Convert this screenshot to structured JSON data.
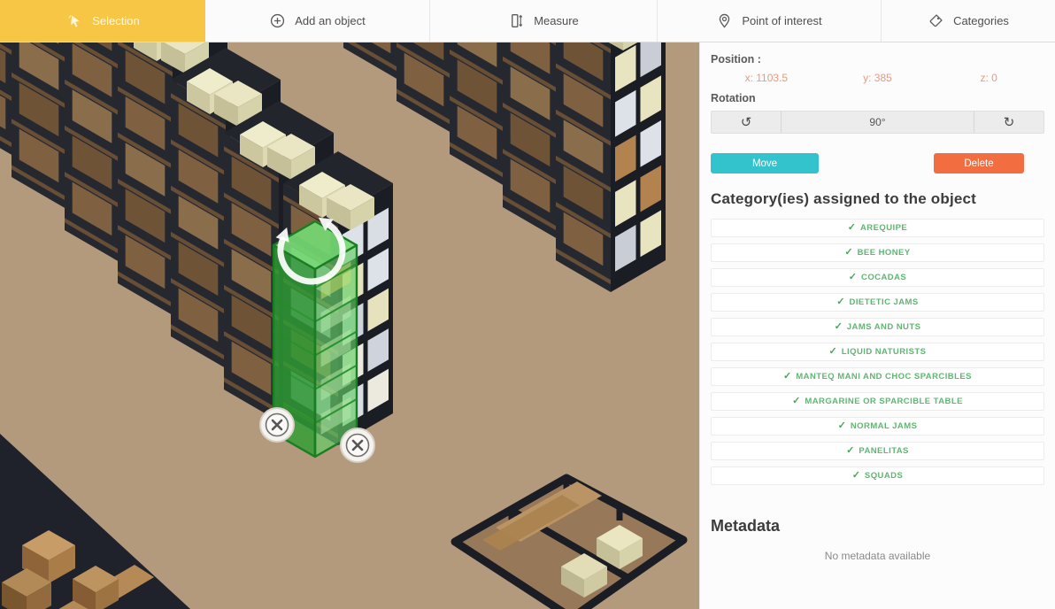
{
  "toolbar": {
    "tabs": [
      {
        "label": "Selection",
        "icon": "cursor-icon",
        "active": true
      },
      {
        "label": "Add an object",
        "icon": "add-icon",
        "active": false
      },
      {
        "label": "Measure",
        "icon": "measure-icon",
        "active": false
      },
      {
        "label": "Point of interest",
        "icon": "poi-icon",
        "active": false
      },
      {
        "label": "Categories",
        "icon": "tag-icon",
        "active": false
      }
    ]
  },
  "panel": {
    "position_label": "Position :",
    "position_values": [
      "x: 1103.5",
      "y: 385",
      "z: 0"
    ],
    "rotation_label": "Rotation",
    "rotation_value": "90°",
    "move_label": "Move",
    "delete_label": "Delete",
    "categories_heading": "Category(ies) assigned to the object",
    "categories": [
      "AREQUIPE",
      "BEE HONEY",
      "COCADAS",
      "DIETETIC JAMS",
      "JAMS AND NUTS",
      "LIQUID NATURISTS",
      "MANTEQ MANI AND CHOC SPARCIBLES",
      "MARGARINE OR SPARCIBLE TABLE",
      "NORMAL JAMS",
      "PANELITAS",
      "SQUADS"
    ],
    "metadata_heading": "Metadata",
    "metadata_empty": "No metadata available"
  },
  "icons": {
    "check": "✓",
    "rotate_ccw": "↺",
    "rotate_cw": "↻"
  },
  "colors": {
    "active_tab_yellow": "#F7C644",
    "move_button_teal": "#33C3CD",
    "delete_button_orange": "#F26E41",
    "category_green": "#62B573",
    "position_value_salmon": "#E59B80",
    "selection_green": "#3DB23D",
    "floor_tan": "#B49A7D"
  }
}
